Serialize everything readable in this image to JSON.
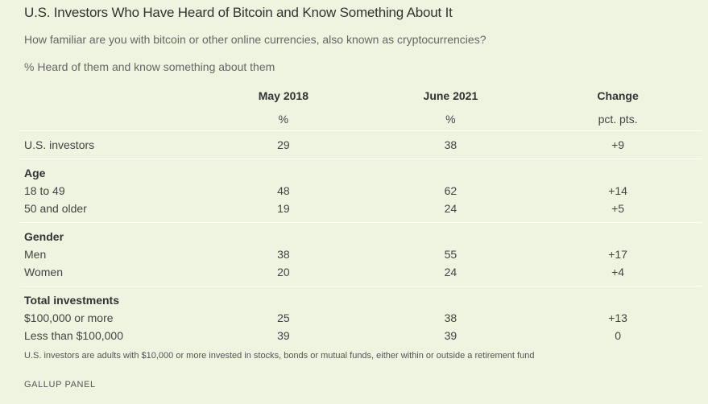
{
  "title": "U.S. Investors Who Have Heard of Bitcoin and Know Something About It",
  "subtitle": "How familiar are you with bitcoin or other online currencies, also known as cryptocurrencies?",
  "unit_note": "% Heard of them and know something about them",
  "chart_data": {
    "type": "table",
    "columns": [
      "",
      "May 2018",
      "June 2021",
      "Change"
    ],
    "units": [
      "",
      "%",
      "%",
      "pct. pts."
    ],
    "rows": {
      "us": [
        "U.S. investors",
        "29",
        "38",
        "+9"
      ],
      "age_label": "Age",
      "age_1": [
        "18 to 49",
        "48",
        "62",
        "+14"
      ],
      "age_2": [
        "50 and older",
        "19",
        "24",
        "+5"
      ],
      "gender_label": "Gender",
      "gender_1": [
        "Men",
        "38",
        "55",
        "+17"
      ],
      "gender_2": [
        "Women",
        "20",
        "24",
        "+4"
      ],
      "inv_label": "Total investments",
      "inv_1": [
        "$100,000 or more",
        "25",
        "38",
        "+13"
      ],
      "inv_2": [
        "Less than $100,000",
        "39",
        "39",
        "0"
      ]
    }
  },
  "footnote": "U.S. investors are adults with $10,000 or more invested in stocks, bonds or mutual funds, either within or outside a retirement fund",
  "source": "GALLUP PANEL",
  "colors": {
    "background": "#eef4df",
    "rule": "#ffffff",
    "text": "#333333"
  }
}
